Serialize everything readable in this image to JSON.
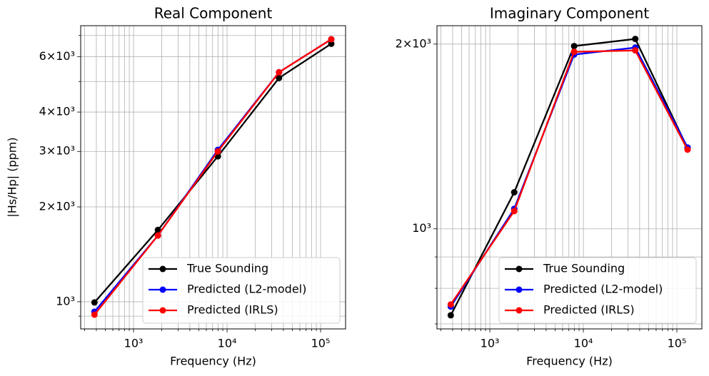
{
  "chart_data": [
    {
      "type": "line",
      "title": "Real Component",
      "xlabel": "Frequency (Hz)",
      "ylabel": "|Hs/Hp| (ppm)",
      "xscale": "log",
      "yscale": "log",
      "grid": true,
      "legend": "lower right",
      "x": [
        382,
        1822,
        7970,
        35920,
        130100
      ],
      "series": [
        {
          "name": "True Sounding",
          "color": "#000000",
          "values": [
            995,
            1690,
            2895,
            5130,
            6590
          ]
        },
        {
          "name": "Predicted (L2-model)",
          "color": "#0000ff",
          "values": [
            930,
            1623,
            3035,
            5350,
            6810
          ]
        },
        {
          "name": "Predicted (IRLS)",
          "color": "#ff0000",
          "values": [
            910,
            1623,
            3000,
            5350,
            6810
          ]
        }
      ],
      "xlim": [
        272,
        185000
      ],
      "ylim": [
        820,
        7520
      ],
      "xticks": [
        {
          "value": 1000,
          "label": "10³"
        },
        {
          "value": 10000,
          "label": "10⁴"
        },
        {
          "value": 100000,
          "label": "10⁵"
        }
      ],
      "xminorticks": [
        300,
        400,
        500,
        600,
        700,
        800,
        900,
        2000,
        3000,
        4000,
        5000,
        6000,
        7000,
        8000,
        9000,
        20000,
        30000,
        40000,
        50000,
        60000,
        70000,
        80000,
        90000
      ],
      "yticks": [
        {
          "value": 1000,
          "label": "10³"
        },
        {
          "value": 2000,
          "label": "2×10³"
        },
        {
          "value": 3000,
          "label": "3×10³"
        },
        {
          "value": 4000,
          "label": "4×10³"
        },
        {
          "value": 6000,
          "label": "6×10³"
        }
      ],
      "yminorticks": [
        900,
        5000,
        7000
      ]
    },
    {
      "type": "line",
      "title": "Imaginary Component",
      "xlabel": "Frequency (Hz)",
      "xscale": "log",
      "yscale": "log",
      "grid": true,
      "legend": "lower right",
      "x": [
        382,
        1822,
        7970,
        35920,
        130100
      ],
      "series": [
        {
          "name": "True Sounding",
          "color": "#000000",
          "values": [
            723,
            1147,
            1985,
            2039,
            1353
          ]
        },
        {
          "name": "Predicted (L2-model)",
          "color": "#0000ff",
          "values": [
            747,
            1078,
            1923,
            1974,
            1357
          ]
        },
        {
          "name": "Predicted (IRLS)",
          "color": "#ff0000",
          "values": [
            753,
            1069,
            1943,
            1953,
            1346
          ]
        }
      ],
      "xlim": [
        272,
        185000
      ],
      "ylim": [
        687,
        2143
      ],
      "xticks": [
        {
          "value": 1000,
          "label": "10³"
        },
        {
          "value": 10000,
          "label": "10⁴"
        },
        {
          "value": 100000,
          "label": "10⁵"
        }
      ],
      "xminorticks": [
        300,
        400,
        500,
        600,
        700,
        800,
        900,
        2000,
        3000,
        4000,
        5000,
        6000,
        7000,
        8000,
        9000,
        20000,
        30000,
        40000,
        50000,
        60000,
        70000,
        80000,
        90000
      ],
      "yticks": [
        {
          "value": 1000,
          "label": "10³"
        },
        {
          "value": 2000,
          "label": "2×10³"
        }
      ],
      "yminorticks": [
        700,
        800,
        900
      ]
    }
  ]
}
